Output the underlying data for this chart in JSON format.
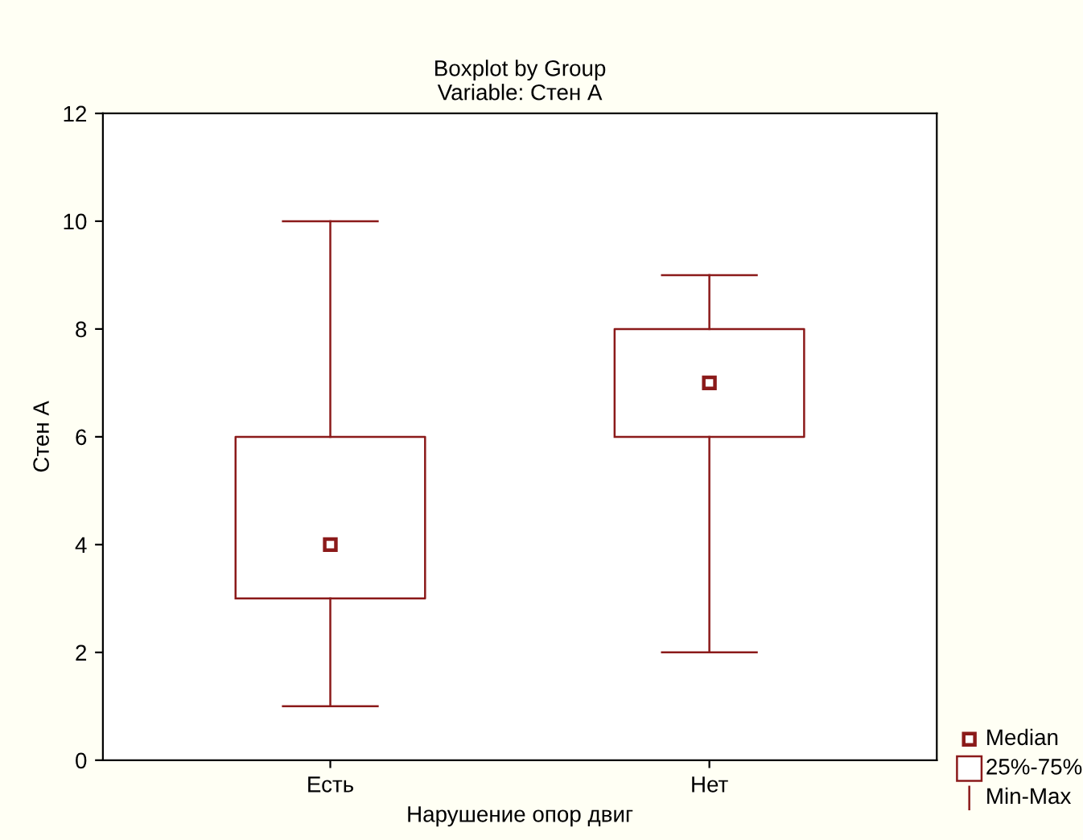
{
  "chart_data": {
    "type": "box",
    "title": "Boxplot by Group",
    "subtitle": "Variable: Стен А",
    "xlabel": "Нарушение опор двиг",
    "ylabel": "Стен А",
    "categories": [
      "Есть",
      "Нет"
    ],
    "series": [
      {
        "color": "#8b1a1a",
        "boxes": [
          {
            "low": 1,
            "q1": 3,
            "median": 4,
            "q3": 6,
            "high": 10
          },
          {
            "low": 2,
            "q1": 6,
            "median": 7,
            "q3": 8,
            "high": 9
          }
        ]
      }
    ],
    "ylim": [
      0,
      12
    ],
    "yticks": [
      0,
      2,
      4,
      6,
      8,
      10,
      12
    ],
    "grid": false,
    "marker": "square",
    "annotations": [
      "Median",
      "25%-75%",
      "Min-Max"
    ]
  }
}
